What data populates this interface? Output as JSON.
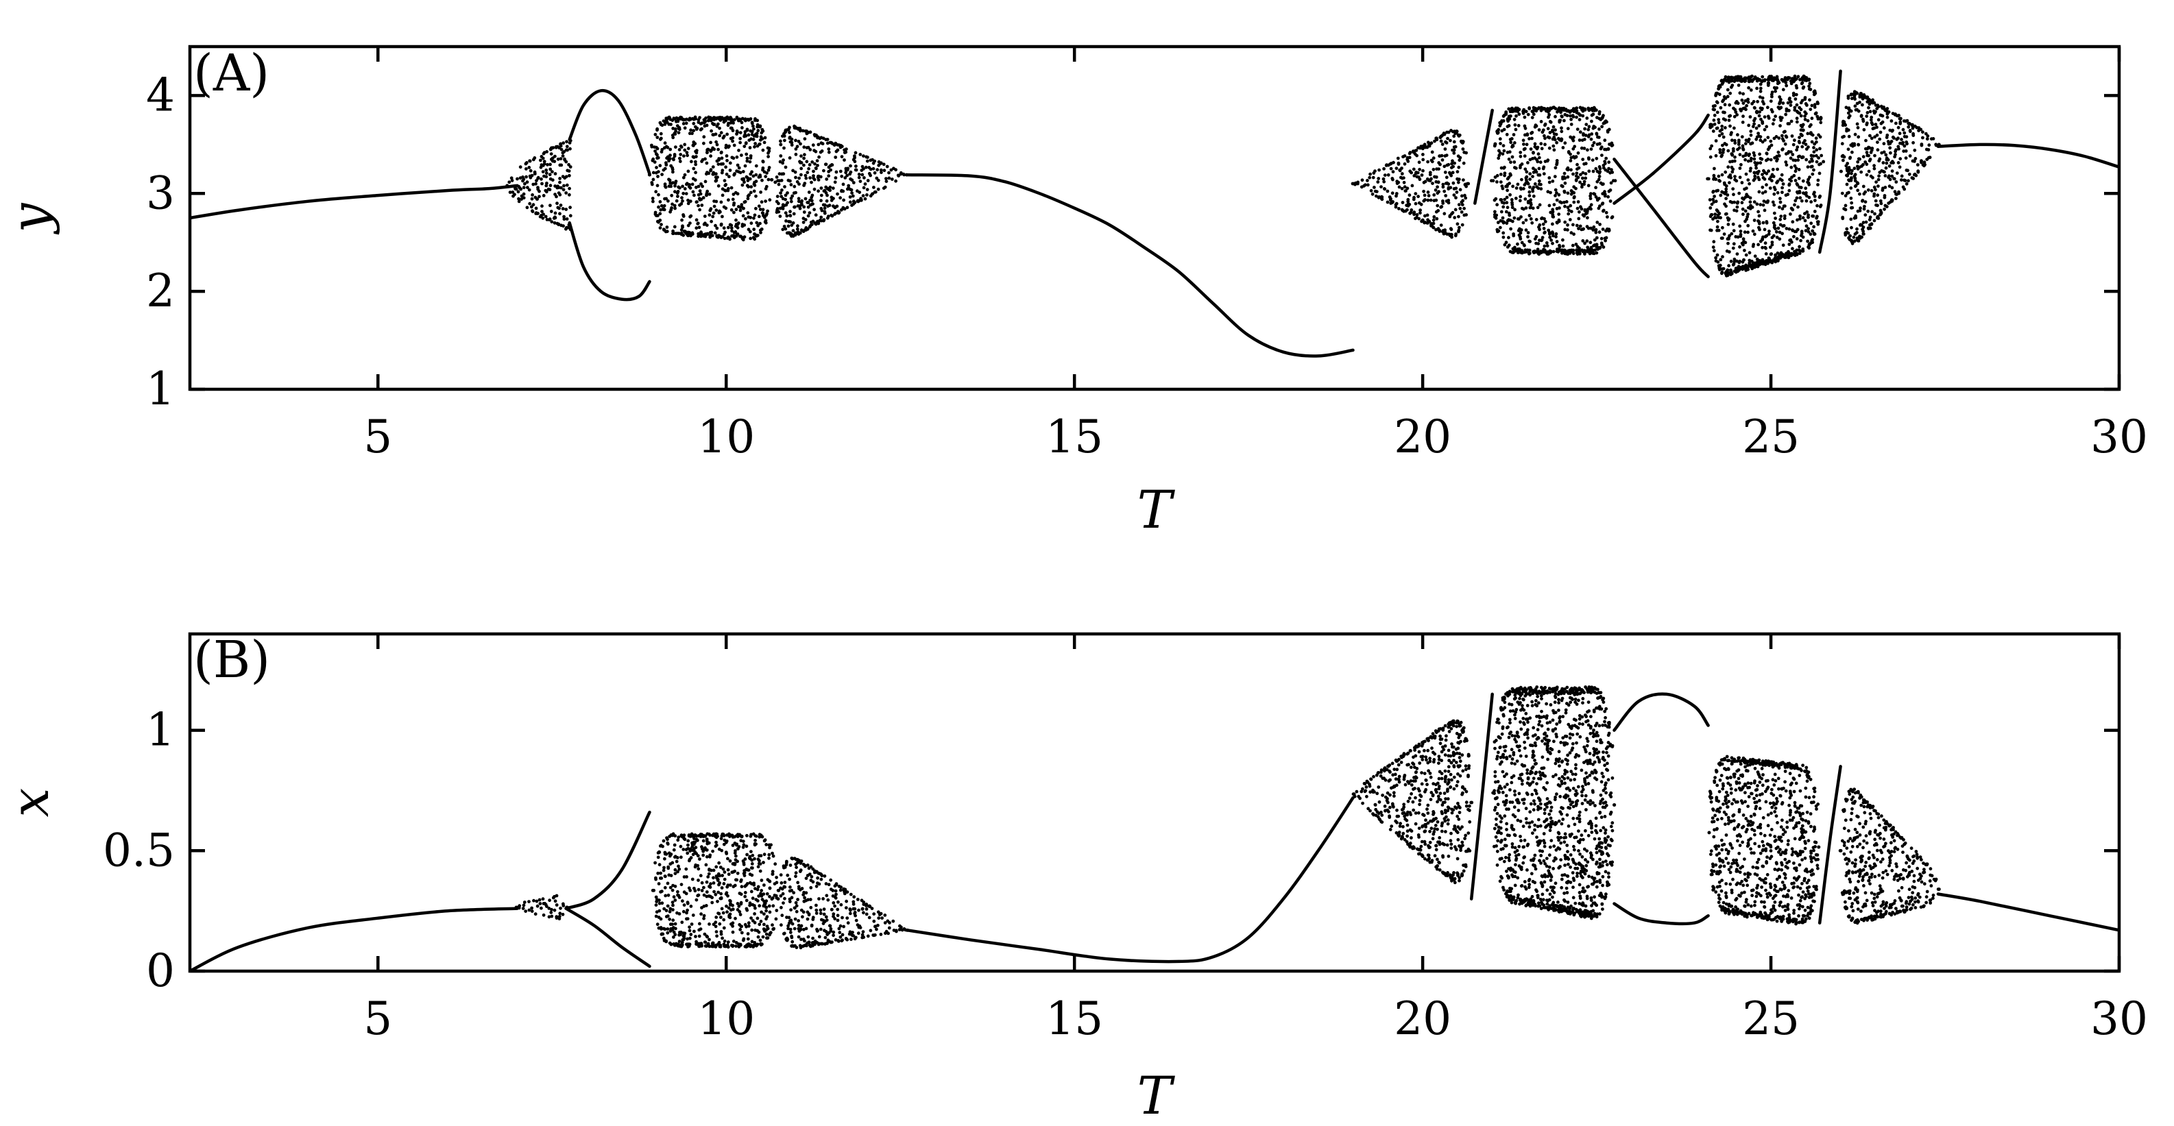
{
  "chart_data": [
    {
      "type": "scatter",
      "panel_label": "(A)",
      "xlabel": "T",
      "ylabel": "y",
      "xlim": [
        2.3,
        30
      ],
      "ylim": [
        1,
        4.5
      ],
      "xticks": [
        5,
        10,
        15,
        20,
        25,
        30
      ],
      "yticks": [
        1,
        2,
        3,
        4
      ],
      "grid": false,
      "branches": [
        {
          "name": "",
          "x": [
            2.3,
            3.0,
            4.0,
            5.0,
            6.0,
            6.6,
            7.0
          ],
          "y": [
            2.75,
            2.83,
            2.92,
            2.98,
            3.03,
            3.05,
            3.08
          ]
        },
        {
          "name": "",
          "x": [
            7.75,
            7.95,
            8.2,
            8.45,
            8.7,
            8.9
          ],
          "y": [
            3.55,
            3.9,
            4.05,
            3.95,
            3.6,
            3.2
          ]
        },
        {
          "name": "",
          "x": [
            7.75,
            7.95,
            8.2,
            8.5,
            8.75,
            8.9
          ],
          "y": [
            2.7,
            2.25,
            2.0,
            1.92,
            1.95,
            2.1
          ]
        },
        {
          "name": "",
          "x": [
            12.6,
            13.5,
            14.0,
            14.5,
            15.0,
            15.5,
            16.0,
            16.5,
            17.0,
            17.5,
            18.0,
            18.5,
            19.0
          ],
          "y": [
            3.19,
            3.18,
            3.12,
            3.0,
            2.85,
            2.68,
            2.45,
            2.2,
            1.87,
            1.55,
            1.38,
            1.34,
            1.4
          ]
        },
        {
          "name": "",
          "x": [
            20.75,
            21.0
          ],
          "y": [
            2.9,
            3.85
          ]
        },
        {
          "name": "",
          "x": [
            22.75,
            23.3,
            23.9,
            24.1
          ],
          "y": [
            3.35,
            2.85,
            2.3,
            2.15
          ]
        },
        {
          "name": "",
          "x": [
            22.75,
            23.3,
            23.9,
            24.1
          ],
          "y": [
            2.9,
            3.2,
            3.6,
            3.8
          ]
        },
        {
          "name": "",
          "x": [
            25.7,
            25.85,
            26.0
          ],
          "y": [
            2.4,
            3.0,
            4.25
          ]
        },
        {
          "name": "",
          "x": [
            27.4,
            28.0,
            28.5,
            29.0,
            29.5,
            30.0
          ],
          "y": [
            3.48,
            3.5,
            3.49,
            3.45,
            3.38,
            3.27
          ]
        }
      ],
      "chaotic_bands": [
        {
          "x": [
            6.85,
            7.75
          ],
          "y": [
            3.08,
            3.08
          ],
          "ymax_end": 3.55,
          "ymin_end": 2.62
        },
        {
          "x": [
            8.9,
            10.65
          ],
          "ymax": [
            3.78,
            3.78
          ],
          "ymin": [
            2.6,
            2.5
          ]
        },
        {
          "x": [
            10.7,
            12.6
          ],
          "ymax": [
            3.78,
            3.2
          ],
          "ymin": [
            2.45,
            3.18
          ]
        },
        {
          "x": [
            19.0,
            20.65
          ],
          "ymax": [
            3.1,
            3.75
          ],
          "ymin": [
            3.1,
            2.45
          ]
        },
        {
          "x": [
            21.0,
            22.75
          ],
          "ymax": [
            3.88,
            3.88
          ],
          "ymin": [
            2.38,
            2.38
          ]
        },
        {
          "x": [
            24.1,
            25.75
          ],
          "ymax": [
            4.2,
            4.2
          ],
          "ymin": [
            2.1,
            2.45
          ]
        },
        {
          "x": [
            26.0,
            27.4
          ],
          "ymax": [
            4.15,
            3.55
          ],
          "ymin": [
            2.3,
            3.45
          ]
        }
      ]
    },
    {
      "type": "scatter",
      "panel_label": "(B)",
      "xlabel": "T",
      "ylabel": "x",
      "xlim": [
        2.3,
        30
      ],
      "ylim": [
        0,
        1.4
      ],
      "xticks": [
        5,
        10,
        15,
        20,
        25,
        30
      ],
      "yticks": [
        0,
        0.5,
        1
      ],
      "grid": false,
      "branches": [
        {
          "name": "",
          "x": [
            2.3,
            3.0,
            4.0,
            5.0,
            6.0,
            7.0
          ],
          "y": [
            0.0,
            0.1,
            0.18,
            0.22,
            0.25,
            0.26
          ]
        },
        {
          "name": "",
          "x": [
            7.7,
            8.1,
            8.5,
            8.9
          ],
          "y": [
            0.26,
            0.19,
            0.1,
            0.02
          ]
        },
        {
          "name": "",
          "x": [
            7.7,
            8.1,
            8.5,
            8.9
          ],
          "y": [
            0.26,
            0.3,
            0.42,
            0.66
          ]
        },
        {
          "name": "",
          "x": [
            12.6,
            13.5,
            14.5,
            15.5,
            16.5,
            17.0,
            17.5,
            18.0,
            18.5,
            19.0
          ],
          "y": [
            0.17,
            0.13,
            0.09,
            0.05,
            0.04,
            0.06,
            0.14,
            0.3,
            0.5,
            0.72
          ]
        },
        {
          "name": "",
          "x": [
            20.7,
            20.85,
            21.0
          ],
          "y": [
            0.3,
            0.72,
            1.15
          ]
        },
        {
          "name": "",
          "x": [
            22.75,
            23.1,
            23.5,
            23.9,
            24.1
          ],
          "y": [
            1.0,
            1.12,
            1.15,
            1.1,
            1.02
          ]
        },
        {
          "name": "",
          "x": [
            22.75,
            23.1,
            23.5,
            23.9,
            24.1
          ],
          "y": [
            0.28,
            0.22,
            0.2,
            0.2,
            0.23
          ]
        },
        {
          "name": "",
          "x": [
            25.7,
            25.85,
            26.0
          ],
          "y": [
            0.2,
            0.55,
            0.85
          ]
        },
        {
          "name": "",
          "x": [
            27.4,
            28.0,
            29.0,
            30.0
          ],
          "y": [
            0.32,
            0.29,
            0.23,
            0.17
          ]
        }
      ],
      "chaotic_bands": [
        {
          "x": [
            7.0,
            7.7
          ],
          "ymax": [
            0.28,
            0.32
          ],
          "ymin": [
            0.25,
            0.21
          ]
        },
        {
          "x": [
            8.95,
            10.75
          ],
          "ymax": [
            0.57,
            0.57
          ],
          "ymin": [
            0.1,
            0.1
          ]
        },
        {
          "x": [
            10.75,
            12.6
          ],
          "ymax": [
            0.52,
            0.17
          ],
          "ymin": [
            0.08,
            0.17
          ]
        },
        {
          "x": [
            19.0,
            20.7
          ],
          "ymax": [
            0.75,
            1.1
          ],
          "ymin": [
            0.72,
            0.3
          ]
        },
        {
          "x": [
            21.0,
            22.75
          ],
          "ymax": [
            1.18,
            1.18
          ],
          "ymin": [
            0.3,
            0.2
          ]
        },
        {
          "x": [
            24.1,
            25.7
          ],
          "ymax": [
            0.9,
            0.85
          ],
          "ymin": [
            0.25,
            0.18
          ]
        },
        {
          "x": [
            26.0,
            27.4
          ],
          "ymax": [
            0.82,
            0.4
          ],
          "ymin": [
            0.18,
            0.28
          ]
        }
      ]
    }
  ]
}
